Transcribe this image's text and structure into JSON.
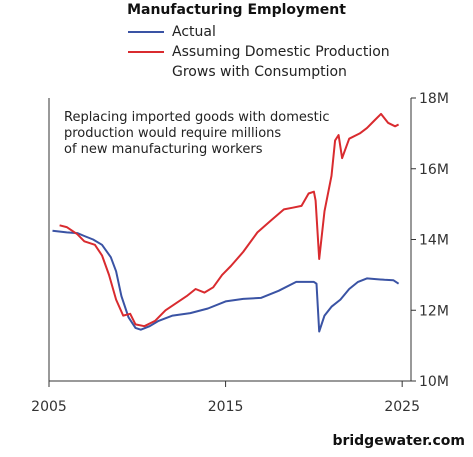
{
  "chart_data": {
    "type": "line",
    "title": "Manufacturing Employment",
    "annotation": [
      "Replacing imported goods with domestic",
      "production would require millions",
      "of new manufacturing workers"
    ],
    "xlabel": "",
    "ylabel": "",
    "xlim": [
      2005,
      2025.5
    ],
    "ylim": [
      10,
      18
    ],
    "x_ticks": [
      2005,
      2015,
      2025
    ],
    "x_tick_labels": [
      "2005",
      "2015",
      "2025"
    ],
    "y_ticks": [
      10,
      12,
      14,
      16,
      18
    ],
    "y_tick_labels": [
      "10M",
      "12M",
      "14M",
      "16M",
      "18M"
    ],
    "y_axis_side": "right",
    "grid": false,
    "legend_position": "top",
    "series": [
      {
        "name": "Actual",
        "color": "#3a53a4",
        "points": [
          [
            2005.2,
            14.25
          ],
          [
            2006.0,
            14.2
          ],
          [
            2006.6,
            14.18
          ],
          [
            2007.0,
            14.1
          ],
          [
            2007.5,
            14.0
          ],
          [
            2008.0,
            13.85
          ],
          [
            2008.5,
            13.5
          ],
          [
            2008.8,
            13.1
          ],
          [
            2009.1,
            12.4
          ],
          [
            2009.5,
            11.8
          ],
          [
            2009.9,
            11.5
          ],
          [
            2010.2,
            11.45
          ],
          [
            2010.7,
            11.55
          ],
          [
            2011.2,
            11.7
          ],
          [
            2012.0,
            11.85
          ],
          [
            2013.0,
            11.92
          ],
          [
            2014.0,
            12.05
          ],
          [
            2015.0,
            12.25
          ],
          [
            2016.0,
            12.32
          ],
          [
            2017.0,
            12.35
          ],
          [
            2018.0,
            12.55
          ],
          [
            2019.0,
            12.8
          ],
          [
            2020.0,
            12.8
          ],
          [
            2020.15,
            12.75
          ],
          [
            2020.3,
            11.4
          ],
          [
            2020.6,
            11.85
          ],
          [
            2021.0,
            12.1
          ],
          [
            2021.5,
            12.3
          ],
          [
            2022.0,
            12.6
          ],
          [
            2022.5,
            12.8
          ],
          [
            2023.0,
            12.9
          ],
          [
            2023.5,
            12.88
          ],
          [
            2024.0,
            12.86
          ],
          [
            2024.5,
            12.85
          ],
          [
            2024.8,
            12.75
          ]
        ]
      },
      {
        "name": "Assuming Domestic Production Grows with Consumption",
        "color": "#d92b2f",
        "points": [
          [
            2005.6,
            14.4
          ],
          [
            2006.0,
            14.35
          ],
          [
            2006.6,
            14.15
          ],
          [
            2007.0,
            13.95
          ],
          [
            2007.6,
            13.85
          ],
          [
            2008.0,
            13.55
          ],
          [
            2008.4,
            13.0
          ],
          [
            2008.8,
            12.3
          ],
          [
            2009.2,
            11.85
          ],
          [
            2009.6,
            11.9
          ],
          [
            2009.9,
            11.6
          ],
          [
            2010.4,
            11.55
          ],
          [
            2011.0,
            11.7
          ],
          [
            2011.6,
            12.0
          ],
          [
            2012.2,
            12.2
          ],
          [
            2012.8,
            12.4
          ],
          [
            2013.3,
            12.6
          ],
          [
            2013.8,
            12.5
          ],
          [
            2014.3,
            12.65
          ],
          [
            2014.8,
            13.0
          ],
          [
            2015.3,
            13.25
          ],
          [
            2016.0,
            13.65
          ],
          [
            2016.8,
            14.2
          ],
          [
            2017.6,
            14.55
          ],
          [
            2018.3,
            14.85
          ],
          [
            2018.8,
            14.9
          ],
          [
            2019.3,
            14.95
          ],
          [
            2019.7,
            15.3
          ],
          [
            2020.0,
            15.35
          ],
          [
            2020.1,
            15.1
          ],
          [
            2020.3,
            13.45
          ],
          [
            2020.6,
            14.8
          ],
          [
            2021.0,
            15.8
          ],
          [
            2021.2,
            16.8
          ],
          [
            2021.4,
            16.95
          ],
          [
            2021.6,
            16.3
          ],
          [
            2022.0,
            16.85
          ],
          [
            2022.6,
            17.0
          ],
          [
            2023.0,
            17.15
          ],
          [
            2023.4,
            17.35
          ],
          [
            2023.8,
            17.55
          ],
          [
            2024.2,
            17.3
          ],
          [
            2024.6,
            17.2
          ],
          [
            2024.8,
            17.25
          ]
        ]
      }
    ]
  },
  "footer": {
    "brand": "bridgewater.com"
  }
}
